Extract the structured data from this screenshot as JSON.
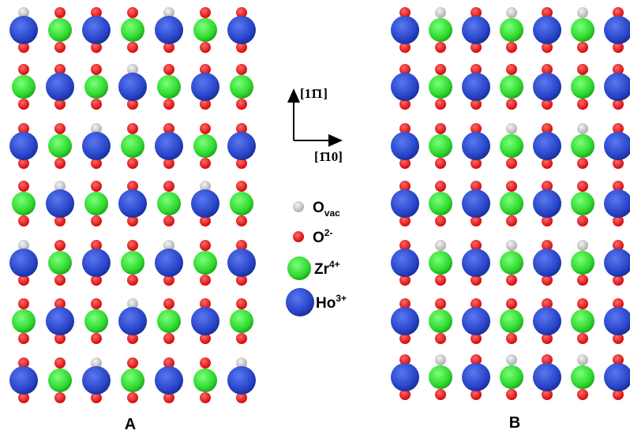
{
  "panels": [
    {
      "label": "A"
    },
    {
      "label": "B"
    }
  ],
  "directions": {
    "up": "[11̄1]",
    "right": "[1̄10]"
  },
  "legend": [
    {
      "symbol": "O",
      "subscript": "vac"
    },
    {
      "symbol": "O",
      "superscript": "2-"
    },
    {
      "symbol": "Zr",
      "superscript": "4+"
    },
    {
      "symbol": "Ho",
      "superscript": "3+"
    }
  ]
}
